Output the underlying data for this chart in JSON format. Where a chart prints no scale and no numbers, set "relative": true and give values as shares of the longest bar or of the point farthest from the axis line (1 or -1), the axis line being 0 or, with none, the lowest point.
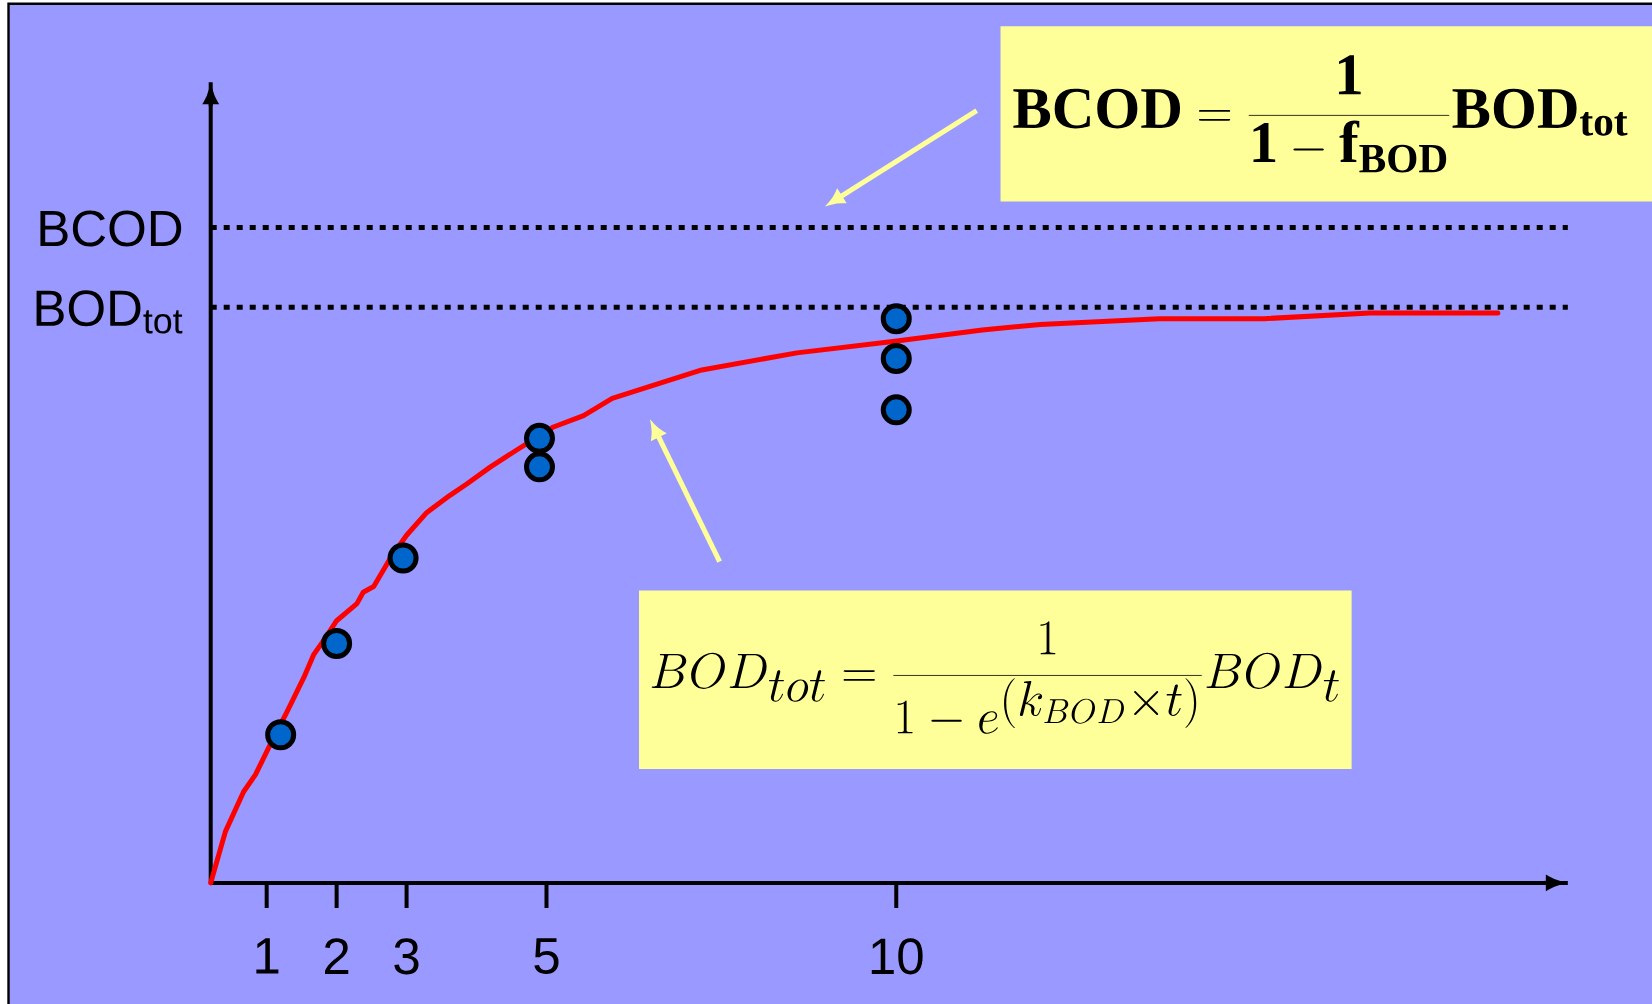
{
  "chart_data": {
    "type": "line",
    "relative": true,
    "xlim": [
      0.2,
      19.6
    ],
    "xticks": [
      1,
      2,
      3,
      5,
      10
    ],
    "series": [
      {
        "type": "scatter",
        "color": "#0066cc",
        "marker": "circle",
        "x": [
          1.2,
          2.0,
          2.95,
          4.9,
          4.9,
          10.0,
          10.0,
          10.0
        ],
        "values": [
          0.26,
          0.42,
          0.57,
          0.78,
          0.73,
          0.99,
          0.92,
          0.83
        ]
      },
      {
        "color": "#ff0000",
        "x": [
          0.2,
          0.41,
          0.67,
          0.84,
          1.08,
          1.29,
          1.53,
          1.67,
          1.84,
          2.0,
          2.29,
          2.38,
          2.53,
          2.77,
          3.0,
          3.29,
          3.62,
          3.86,
          4.2,
          4.58,
          5.1,
          5.53,
          5.94,
          7.22,
          8.58,
          9.95,
          11.23,
          12.06,
          13.76,
          15.26,
          16.77,
          17.97,
          18.6
        ],
        "values": [
          0,
          0.09,
          0.16,
          0.19,
          0.25,
          0.3,
          0.36,
          0.4,
          0.43,
          0.46,
          0.49,
          0.51,
          0.52,
          0.57,
          0.61,
          0.65,
          0.68,
          0.7,
          0.73,
          0.76,
          0.8,
          0.82,
          0.85,
          0.9,
          0.93,
          0.95,
          0.97,
          0.98,
          0.99,
          0.99,
          1.0,
          1.0,
          1.0
        ]
      }
    ],
    "ref_lines": [
      {
        "axis": "y",
        "value": 1.15,
        "label": "BCOD",
        "color": "#000000",
        "line_style": "dotted"
      },
      {
        "axis": "y",
        "value": 1.01,
        "label": "BOD$_{tot}$",
        "color": "#000000",
        "line_style": "dotted"
      }
    ],
    "annotations": [
      "\\mathbf{BCOD}=\\frac{\\mathbf{1}}{\\mathbf{1}-\\mathbf{f}_{\\mathbf{BOD}}}\\mathbf{BOD}_{\\mathbf{tot}}",
      "BOD_{tot}=\\frac{1}{1-e^{(k_{BOD}\\times t)}}BOD_{t}"
    ]
  }
}
